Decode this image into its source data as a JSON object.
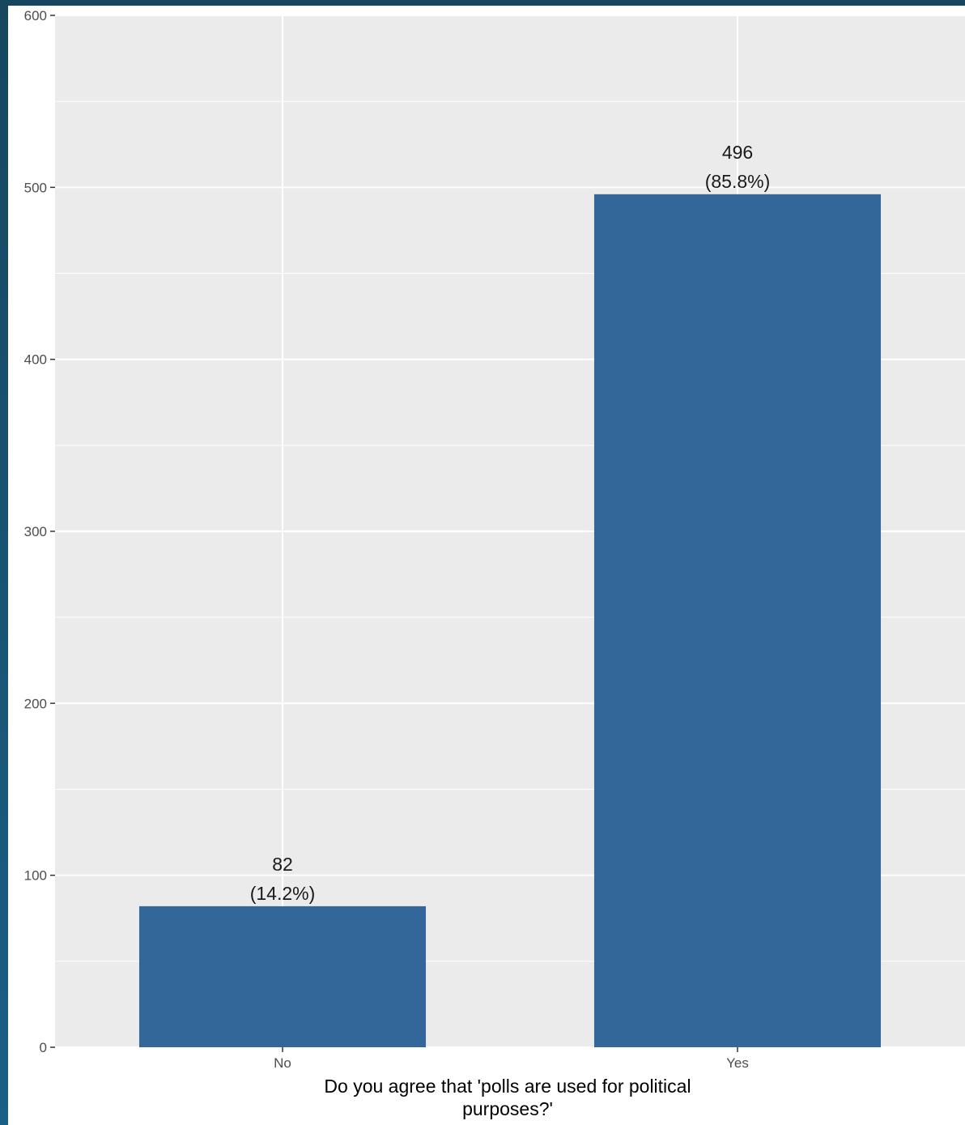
{
  "chart_data": {
    "type": "bar",
    "categories": [
      "No",
      "Yes"
    ],
    "values": [
      82,
      496
    ],
    "data_labels": [
      {
        "count": "82",
        "percent": "(14.2%)"
      },
      {
        "count": "496",
        "percent": "(85.8%)"
      }
    ],
    "xlabel_lines": [
      "Do you agree that 'polls are used for political",
      "purposes?'"
    ],
    "ylabel": "",
    "title": "",
    "ylim": [
      0,
      600
    ],
    "yticks": [
      0,
      100,
      200,
      300,
      400,
      500,
      600
    ],
    "grid": true,
    "colors": {
      "bar": "#336699",
      "panel": "#ebebeb",
      "grid": "#ffffff"
    }
  }
}
